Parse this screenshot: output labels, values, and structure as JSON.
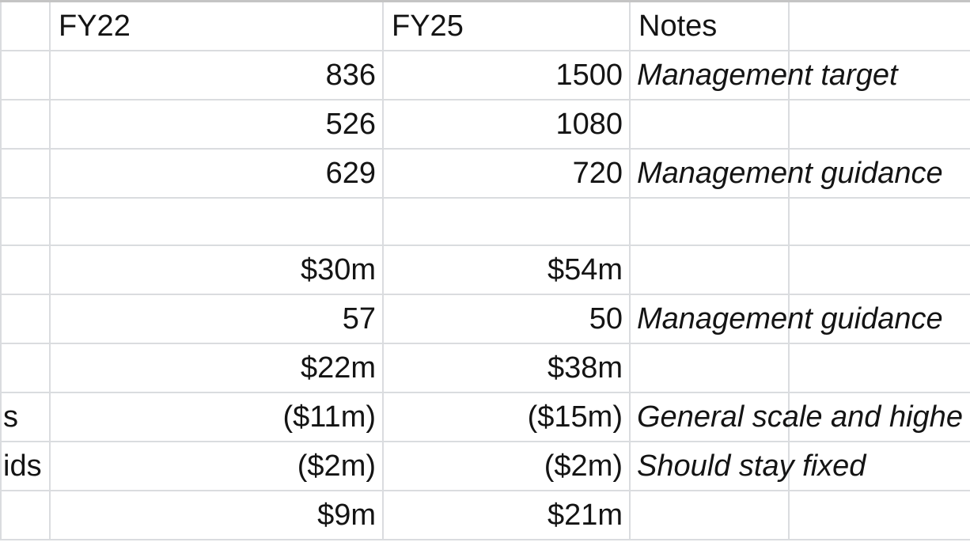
{
  "sheet": {
    "headers": {
      "a": "",
      "fy22": "FY22",
      "fy25": "FY25",
      "notes": "Notes",
      "e": ""
    },
    "rows": [
      {
        "a": "",
        "fy22": "836",
        "fy25": "1500",
        "notes": "Management target"
      },
      {
        "a": "",
        "fy22": "526",
        "fy25": "1080",
        "notes": ""
      },
      {
        "a": "",
        "fy22": "629",
        "fy25": "720",
        "notes": "Management guidance"
      },
      {
        "a": "",
        "fy22": "",
        "fy25": "",
        "notes": ""
      },
      {
        "a": "",
        "fy22": "$30m",
        "fy25": "$54m",
        "notes": ""
      },
      {
        "a": "",
        "fy22": "57",
        "fy25": "50",
        "notes": "Management guidance"
      },
      {
        "a": "",
        "fy22": "$22m",
        "fy25": "$38m",
        "notes": ""
      },
      {
        "a": "s",
        "fy22": "($11m)",
        "fy25": "($15m)",
        "notes": "General scale and highe"
      },
      {
        "a": "ids",
        "fy22": "($2m)",
        "fy25": "($2m)",
        "notes": "Should stay fixed"
      },
      {
        "a": "",
        "fy22": "$9m",
        "fy25": "$21m",
        "notes": ""
      }
    ]
  }
}
